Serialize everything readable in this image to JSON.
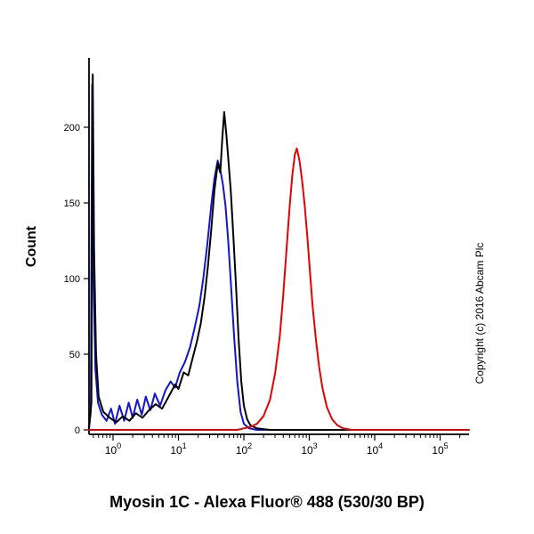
{
  "y_axis_label": "Count",
  "footer_title": "Myosin 1C - Alexa Fluor® 488 (530/30 BP)",
  "copyright_text": "Copyright (c) 2016 Abcam Plc",
  "chart_data": {
    "type": "line",
    "subtype": "flow-cytometry-histogram",
    "title": "Myosin 1C - Alexa Fluor® 488 (530/30 BP)",
    "xlabel": "Myosin 1C - Alexa Fluor® 488 (530/30 BP)",
    "ylabel": "Count",
    "x_scale": "log10",
    "x_tick_exponents": [
      0,
      1,
      2,
      3,
      4,
      5
    ],
    "y_ticks": [
      0,
      50,
      100,
      150,
      200
    ],
    "xlim_log": [
      -0.37,
      5.44
    ],
    "ylim": [
      0,
      246
    ],
    "grid": false,
    "legend": "none",
    "series": [
      {
        "name": "blue",
        "color": "#1414cc",
        "peak_log_x": 1.6,
        "peak_count": 178,
        "points": [
          [
            -0.37,
            0
          ],
          [
            -0.34,
            12
          ],
          [
            -0.32,
            228
          ],
          [
            -0.3,
            100
          ],
          [
            -0.27,
            40
          ],
          [
            -0.23,
            18
          ],
          [
            -0.17,
            10
          ],
          [
            -0.1,
            6
          ],
          [
            -0.03,
            14
          ],
          [
            0.03,
            4
          ],
          [
            0.1,
            16
          ],
          [
            0.17,
            6
          ],
          [
            0.24,
            18
          ],
          [
            0.3,
            8
          ],
          [
            0.37,
            20
          ],
          [
            0.44,
            10
          ],
          [
            0.5,
            22
          ],
          [
            0.57,
            13
          ],
          [
            0.64,
            24
          ],
          [
            0.72,
            16
          ],
          [
            0.8,
            26
          ],
          [
            0.88,
            32
          ],
          [
            0.95,
            28
          ],
          [
            1.02,
            38
          ],
          [
            1.1,
            45
          ],
          [
            1.18,
            55
          ],
          [
            1.25,
            68
          ],
          [
            1.32,
            82
          ],
          [
            1.38,
            100
          ],
          [
            1.44,
            122
          ],
          [
            1.5,
            148
          ],
          [
            1.55,
            166
          ],
          [
            1.6,
            178
          ],
          [
            1.64,
            172
          ],
          [
            1.68,
            162
          ],
          [
            1.72,
            148
          ],
          [
            1.76,
            125
          ],
          [
            1.8,
            98
          ],
          [
            1.85,
            62
          ],
          [
            1.9,
            32
          ],
          [
            1.95,
            12
          ],
          [
            2.0,
            4
          ],
          [
            2.08,
            1
          ],
          [
            2.2,
            0
          ],
          [
            5.44,
            0
          ]
        ]
      },
      {
        "name": "black",
        "color": "#000000",
        "peak_log_x": 1.7,
        "peak_count": 210,
        "points": [
          [
            -0.37,
            0
          ],
          [
            -0.33,
            18
          ],
          [
            -0.31,
            235
          ],
          [
            -0.29,
            120
          ],
          [
            -0.26,
            50
          ],
          [
            -0.22,
            22
          ],
          [
            -0.15,
            12
          ],
          [
            -0.05,
            8
          ],
          [
            0.05,
            5
          ],
          [
            0.15,
            9
          ],
          [
            0.25,
            6
          ],
          [
            0.35,
            11
          ],
          [
            0.45,
            8
          ],
          [
            0.55,
            13
          ],
          [
            0.65,
            17
          ],
          [
            0.75,
            14
          ],
          [
            0.85,
            22
          ],
          [
            0.95,
            30
          ],
          [
            1.0,
            27
          ],
          [
            1.08,
            38
          ],
          [
            1.15,
            36
          ],
          [
            1.22,
            48
          ],
          [
            1.28,
            58
          ],
          [
            1.34,
            70
          ],
          [
            1.4,
            88
          ],
          [
            1.45,
            108
          ],
          [
            1.5,
            132
          ],
          [
            1.55,
            158
          ],
          [
            1.6,
            176
          ],
          [
            1.64,
            170
          ],
          [
            1.67,
            192
          ],
          [
            1.7,
            210
          ],
          [
            1.73,
            196
          ],
          [
            1.76,
            180
          ],
          [
            1.8,
            158
          ],
          [
            1.84,
            128
          ],
          [
            1.88,
            95
          ],
          [
            1.92,
            60
          ],
          [
            1.96,
            32
          ],
          [
            2.0,
            16
          ],
          [
            2.05,
            7
          ],
          [
            2.1,
            3
          ],
          [
            2.2,
            1
          ],
          [
            2.4,
            0
          ],
          [
            5.44,
            0
          ]
        ]
      },
      {
        "name": "red",
        "color": "#e60000",
        "peak_log_x": 2.81,
        "peak_count": 186,
        "points": [
          [
            -0.37,
            0
          ],
          [
            1.9,
            0
          ],
          [
            2.0,
            1
          ],
          [
            2.1,
            2
          ],
          [
            2.2,
            4
          ],
          [
            2.3,
            9
          ],
          [
            2.4,
            20
          ],
          [
            2.48,
            38
          ],
          [
            2.55,
            62
          ],
          [
            2.6,
            88
          ],
          [
            2.65,
            118
          ],
          [
            2.7,
            148
          ],
          [
            2.74,
            168
          ],
          [
            2.78,
            182
          ],
          [
            2.81,
            186
          ],
          [
            2.85,
            178
          ],
          [
            2.89,
            165
          ],
          [
            2.93,
            148
          ],
          [
            2.97,
            128
          ],
          [
            3.01,
            105
          ],
          [
            3.05,
            82
          ],
          [
            3.1,
            60
          ],
          [
            3.15,
            42
          ],
          [
            3.2,
            28
          ],
          [
            3.27,
            15
          ],
          [
            3.35,
            7
          ],
          [
            3.43,
            3
          ],
          [
            3.52,
            1
          ],
          [
            3.65,
            0
          ],
          [
            5.44,
            0
          ]
        ]
      }
    ]
  }
}
